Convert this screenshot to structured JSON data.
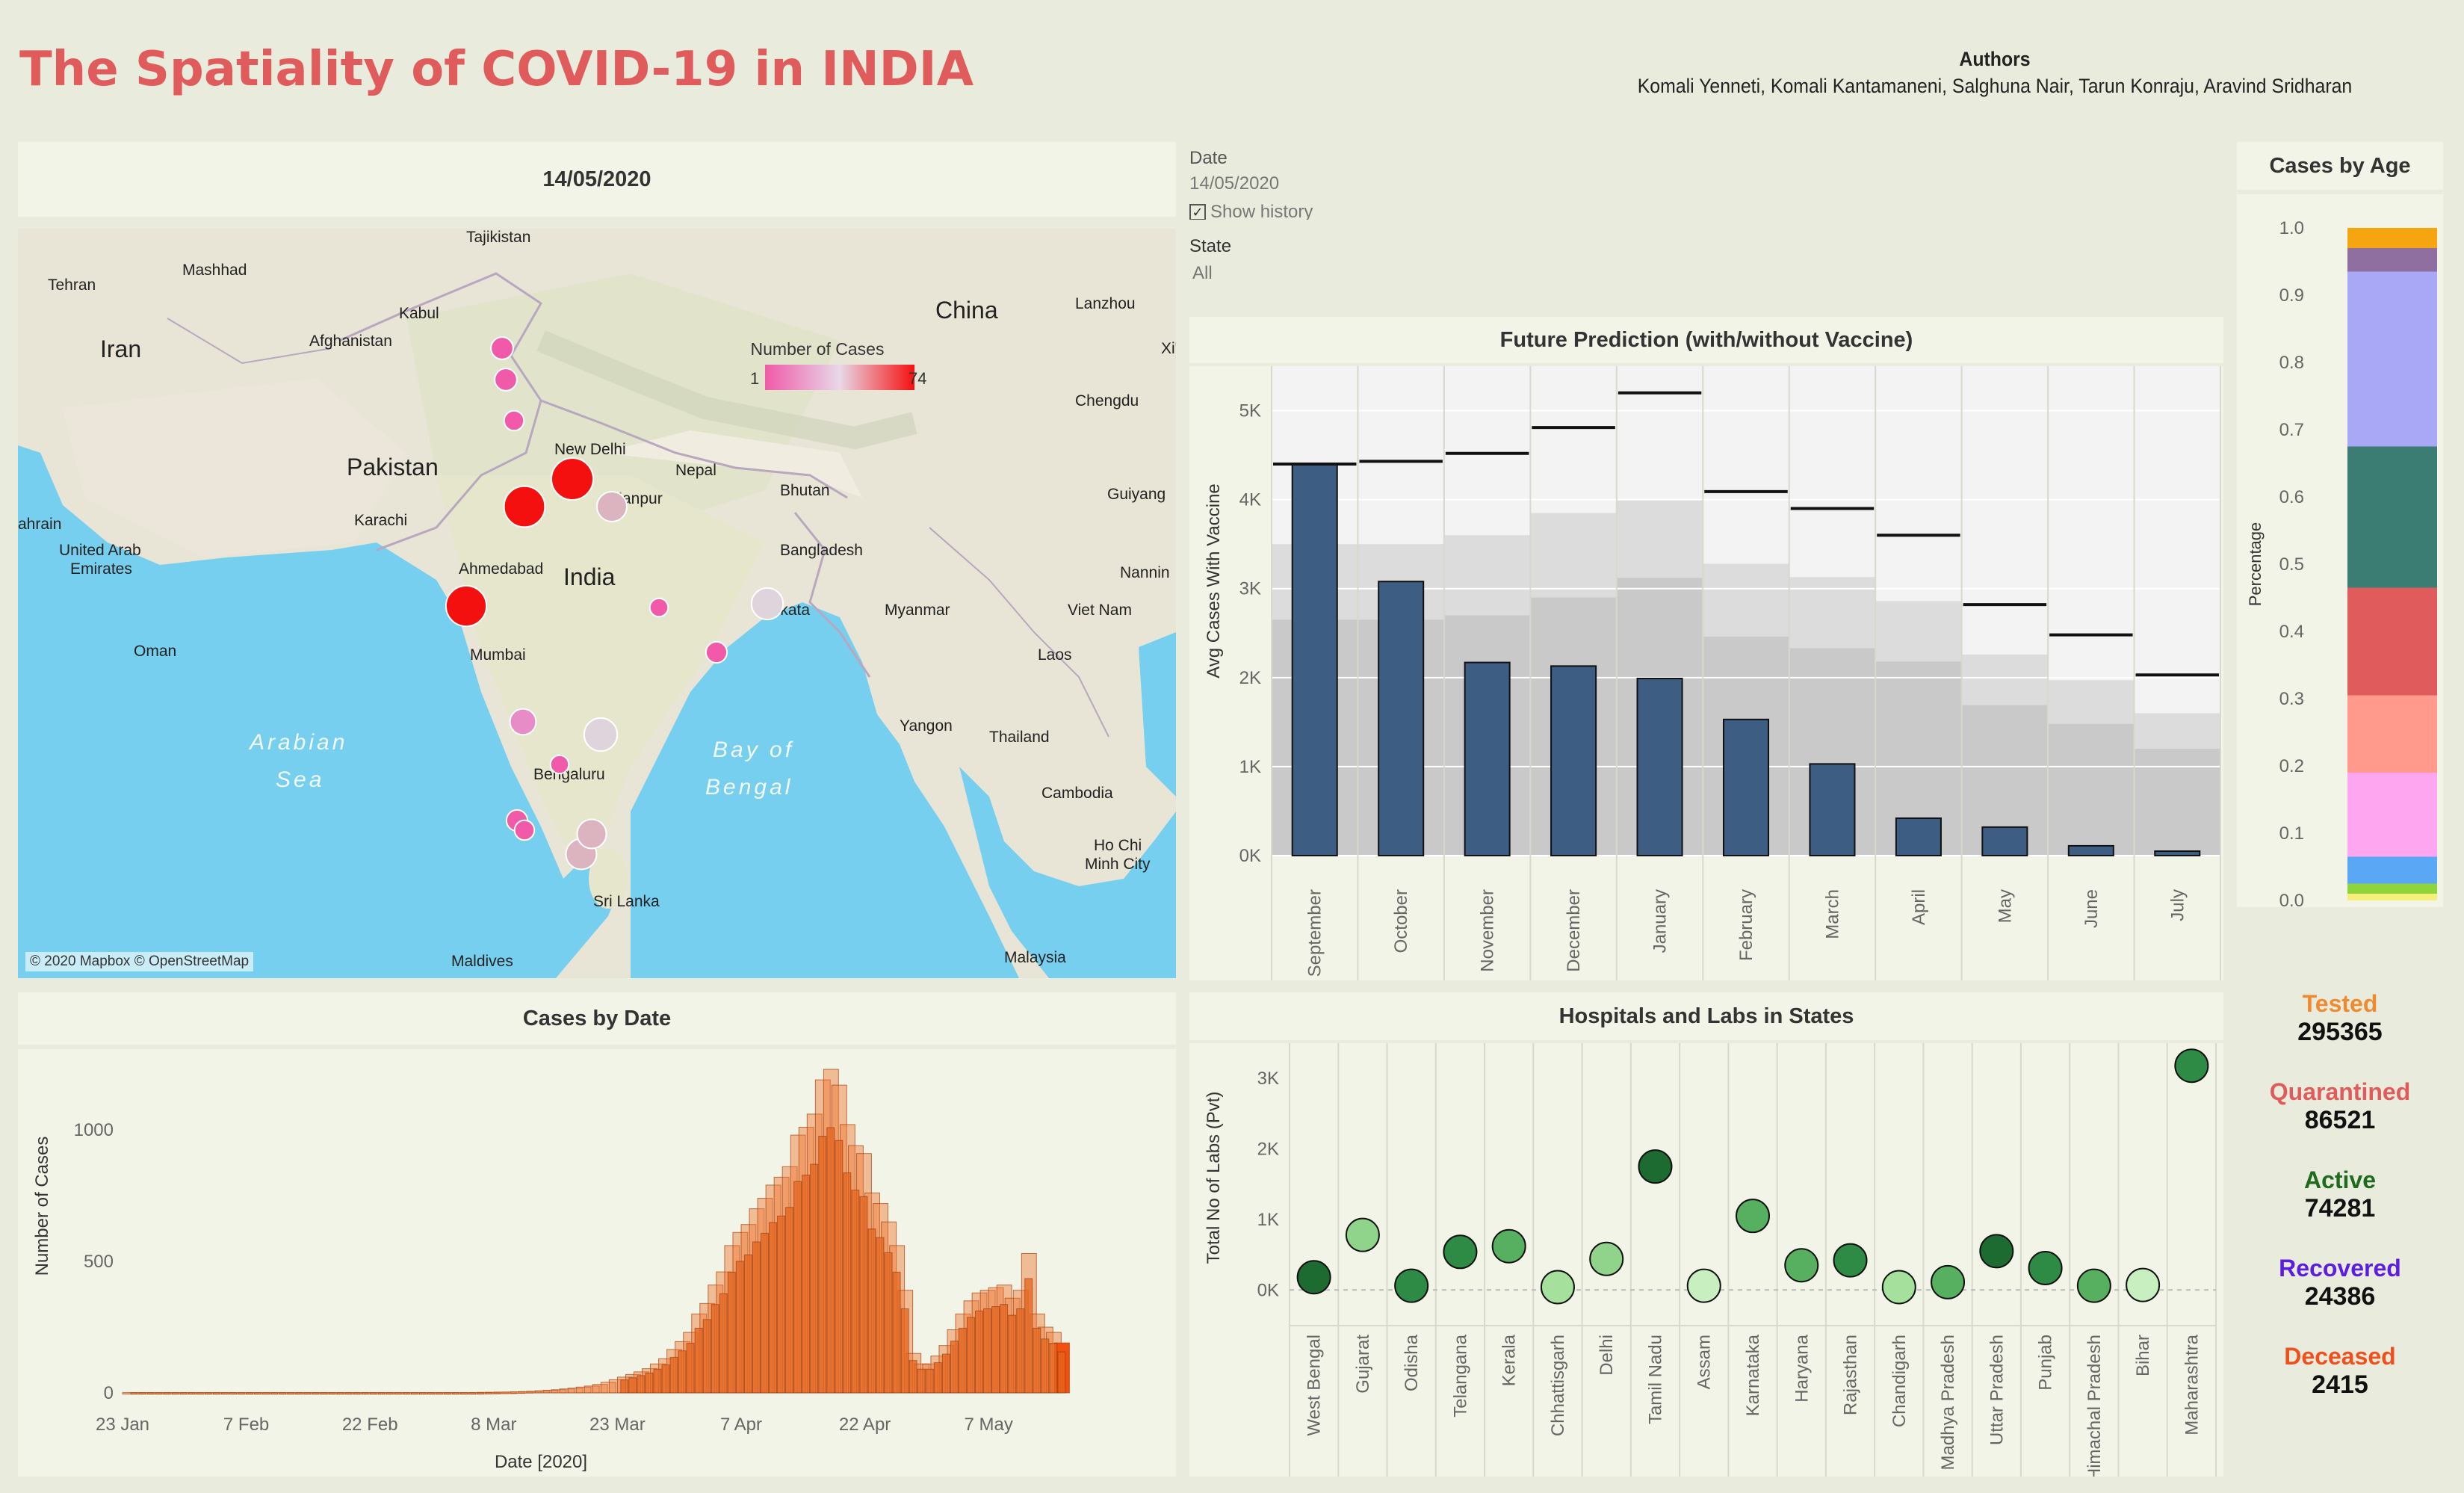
{
  "page": {
    "title": "The Spatiality of COVID-19 in INDIA",
    "authors_heading": "Authors",
    "authors": "Komali Yenneti, Komali Kantamaneni, Salghuna Nair, Tarun Konraju,  Aravind Sridharan"
  },
  "filters": {
    "date_label": "Date",
    "date_value": "14/05/2020",
    "show_history": "Show history",
    "state_label": "State",
    "state_value": "All"
  },
  "map": {
    "header": "14/05/2020",
    "attribution": "© 2020 Mapbox © OpenStreetMap",
    "legend_title": "Number of Cases",
    "legend_min": "1",
    "legend_max": "74",
    "places": [
      {
        "name": "Tajikistan",
        "x": 600,
        "y": 18
      },
      {
        "name": "Mashhad",
        "x": 220,
        "y": 62
      },
      {
        "name": "Tehran",
        "x": 40,
        "y": 82
      },
      {
        "name": "Afghanistan",
        "x": 390,
        "y": 157
      },
      {
        "name": "Kabul",
        "x": 510,
        "y": 120
      },
      {
        "name": "Iran",
        "x": 110,
        "y": 172
      },
      {
        "name": "China",
        "x": 1228,
        "y": 120
      },
      {
        "name": "Lanzhou",
        "x": 1415,
        "y": 107
      },
      {
        "name": "Xi'a",
        "x": 1530,
        "y": 167
      },
      {
        "name": "Chengdu",
        "x": 1415,
        "y": 237
      },
      {
        "name": "Pakistan",
        "x": 440,
        "y": 330
      },
      {
        "name": "New Delhi",
        "x": 718,
        "y": 302
      },
      {
        "name": "Nepal",
        "x": 880,
        "y": 330
      },
      {
        "name": "Bhutan",
        "x": 1020,
        "y": 357
      },
      {
        "name": "Guiyang",
        "x": 1458,
        "y": 362
      },
      {
        "name": "Kanpur",
        "x": 795,
        "y": 368
      },
      {
        "name": "Karachi",
        "x": 450,
        "y": 397
      },
      {
        "name": "Bangladesh",
        "x": 1020,
        "y": 437
      },
      {
        "name": "ahrain",
        "x": 0,
        "y": 402
      },
      {
        "name": "United Arab",
        "x": 55,
        "y": 437
      },
      {
        "name": "Emirates",
        "x": 70,
        "y": 462
      },
      {
        "name": "Ahmedabad",
        "x": 590,
        "y": 462
      },
      {
        "name": "India",
        "x": 730,
        "y": 477
      },
      {
        "name": "Kolkata",
        "x": 990,
        "y": 517
      },
      {
        "name": "Myanmar",
        "x": 1160,
        "y": 517
      },
      {
        "name": "Viet Nam",
        "x": 1405,
        "y": 517
      },
      {
        "name": "Nannin",
        "x": 1475,
        "y": 467
      },
      {
        "name": "Oman",
        "x": 155,
        "y": 572
      },
      {
        "name": "Mumbai",
        "x": 605,
        "y": 577
      },
      {
        "name": "Laos",
        "x": 1365,
        "y": 577
      },
      {
        "name": "Arabian",
        "x": 310,
        "y": 697
      },
      {
        "name": "Sea",
        "x": 345,
        "y": 747
      },
      {
        "name": "Yangon",
        "x": 1180,
        "y": 672
      },
      {
        "name": "Thailand",
        "x": 1300,
        "y": 687
      },
      {
        "name": "Bay of",
        "x": 930,
        "y": 707
      },
      {
        "name": "Bengal",
        "x": 920,
        "y": 757
      },
      {
        "name": "Bengaluru",
        "x": 690,
        "y": 737
      },
      {
        "name": "Cambodia",
        "x": 1370,
        "y": 762
      },
      {
        "name": "Ho Chi",
        "x": 1440,
        "y": 832
      },
      {
        "name": "Minh City",
        "x": 1428,
        "y": 857
      },
      {
        "name": "Sri Lanka",
        "x": 770,
        "y": 907
      },
      {
        "name": "Maldives",
        "x": 580,
        "y": 987
      },
      {
        "name": "Malaysia",
        "x": 1320,
        "y": 982
      }
    ],
    "bubbles": [
      {
        "x": 742,
        "y": 335,
        "cases": 74
      },
      {
        "x": 678,
        "y": 372,
        "cases": 70
      },
      {
        "x": 600,
        "y": 505,
        "cases": 68
      },
      {
        "x": 795,
        "y": 372,
        "cases": 30
      },
      {
        "x": 1003,
        "y": 502,
        "cases": 35
      },
      {
        "x": 780,
        "y": 677,
        "cases": 40
      },
      {
        "x": 754,
        "y": 837,
        "cases": 32
      },
      {
        "x": 768,
        "y": 810,
        "cases": 28
      },
      {
        "x": 676,
        "y": 660,
        "cases": 20
      },
      {
        "x": 648,
        "y": 160,
        "cases": 12
      },
      {
        "x": 653,
        "y": 202,
        "cases": 12
      },
      {
        "x": 664,
        "y": 257,
        "cases": 8
      },
      {
        "x": 935,
        "y": 567,
        "cases": 10
      },
      {
        "x": 858,
        "y": 507,
        "cases": 6
      },
      {
        "x": 725,
        "y": 717,
        "cases": 6
      },
      {
        "x": 668,
        "y": 792,
        "cases": 10
      },
      {
        "x": 678,
        "y": 805,
        "cases": 8
      }
    ]
  },
  "prediction": {
    "header": "Future Prediction (with/without Vaccine)",
    "chart_data": {
      "type": "bar",
      "title": "Future Prediction (with/without Vaccine)",
      "ylabel": "Avg Cases With Vaccine",
      "xlabel": "",
      "ylim": [
        0,
        5500
      ],
      "yticks": [
        "0K",
        "1K",
        "2K",
        "3K",
        "4K",
        "5K"
      ],
      "categories": [
        "September",
        "October",
        "November",
        "December",
        "January",
        "February",
        "March",
        "April",
        "May",
        "June",
        "July"
      ],
      "series": [
        {
          "name": "Avg Cases With Vaccine",
          "values": [
            4400,
            3080,
            2170,
            2130,
            1990,
            1530,
            1030,
            420,
            320,
            110,
            50
          ]
        },
        {
          "name": "Without Vaccine (reference)",
          "values": [
            4400,
            4430,
            4520,
            4810,
            5200,
            4090,
            3900,
            3600,
            2820,
            2480,
            2030
          ]
        }
      ]
    }
  },
  "age": {
    "header": "Cases by Age",
    "chart_data": {
      "type": "bar",
      "title": "Cases by Age",
      "ylabel": "Percentage",
      "ylim": [
        0,
        1.0
      ],
      "yticks": [
        "0.0",
        "0.1",
        "0.2",
        "0.3",
        "0.4",
        "0.5",
        "0.6",
        "0.7",
        "0.8",
        "0.9",
        "1.0"
      ],
      "segments": [
        {
          "value": 0.01,
          "color": "#f6f07a"
        },
        {
          "value": 0.015,
          "color": "#8fd43b"
        },
        {
          "value": 0.04,
          "color": "#5aa8f5"
        },
        {
          "value": 0.125,
          "color": "#ffa6f0"
        },
        {
          "value": 0.115,
          "color": "#ff9a8c"
        },
        {
          "value": 0.16,
          "color": "#e05b5b"
        },
        {
          "value": 0.21,
          "color": "#3b7d72"
        },
        {
          "value": 0.26,
          "color": "#a8a8f7"
        },
        {
          "value": 0.035,
          "color": "#8f6f9f"
        },
        {
          "value": 0.03,
          "color": "#f5a50f"
        }
      ]
    }
  },
  "cases_by_date": {
    "header": "Cases by Date",
    "chart_data": {
      "type": "bar",
      "title": "Cases by Date",
      "ylabel": "Number of Cases",
      "xlabel": "Date [2020]",
      "ylim": [
        0,
        1250
      ],
      "yticks": [
        "0",
        "500",
        "1000"
      ],
      "xticks": [
        "23 Jan",
        "7 Feb",
        "22 Feb",
        "8 Mar",
        "23 Mar",
        "7 Apr",
        "22 Apr",
        "7 May"
      ],
      "x_start_day": 23,
      "x_end_day": 136,
      "values": [
        1,
        1,
        1,
        1,
        1,
        1,
        1,
        1,
        1,
        1,
        1,
        1,
        1,
        1,
        1,
        1,
        1,
        1,
        1,
        1,
        1,
        1,
        1,
        1,
        1,
        1,
        1,
        1,
        1,
        1,
        1,
        1,
        1,
        1,
        1,
        1,
        1,
        1,
        1,
        1,
        1,
        1,
        1,
        2,
        2,
        3,
        3,
        4,
        5,
        6,
        8,
        10,
        12,
        15,
        18,
        22,
        26,
        32,
        40,
        50,
        60,
        70,
        80,
        92,
        110,
        130,
        165,
        195,
        230,
        300,
        340,
        410,
        460,
        560,
        610,
        640,
        700,
        740,
        790,
        820,
        860,
        980,
        1010,
        1060,
        1190,
        1230,
        1170,
        1020,
        940,
        910,
        760,
        720,
        650,
        560,
        390,
        150,
        110,
        110,
        140,
        180,
        240,
        300,
        350,
        380,
        390,
        400,
        410,
        360,
        390,
        530,
        300,
        250,
        230,
        190
      ]
    }
  },
  "labs": {
    "header": "Hospitals and Labs in States",
    "chart_data": {
      "type": "scatter",
      "title": "Hospitals and Labs in States",
      "ylabel": "Total No of Labs (Pvt)",
      "ylim": [
        -400,
        3500
      ],
      "yticks": [
        "0K",
        "1K",
        "2K",
        "3K"
      ],
      "categories": [
        "West Bengal",
        "Gujarat",
        "Odisha",
        "Telangana",
        "Kerala",
        "Chhattisgarh",
        "Delhi",
        "Tamil Nadu",
        "Assam",
        "Karnataka",
        "Haryana",
        "Rajasthan",
        "Chandigarh",
        "Madhya Pradesh",
        "Uttar Pradesh",
        "Punjab",
        "Himachal Pradesh",
        "Bihar",
        "Maharashtra"
      ],
      "values": [
        180,
        780,
        60,
        540,
        620,
        40,
        440,
        1750,
        60,
        1050,
        350,
        420,
        40,
        110,
        550,
        310,
        60,
        70,
        3180
      ],
      "colors": [
        "#1e6b32",
        "#8fd48a",
        "#2e8b45",
        "#2e8b45",
        "#56b060",
        "#a5e09c",
        "#8fd48a",
        "#1e6b32",
        "#c8efc0",
        "#56b060",
        "#56b060",
        "#2e8b45",
        "#a5e09c",
        "#56b060",
        "#1e6b32",
        "#2e8b45",
        "#56b060",
        "#c8efc0",
        "#2e8b45"
      ]
    }
  },
  "kpis": [
    {
      "label": "Tested",
      "value": "295365",
      "color": "#f08a30"
    },
    {
      "label": "Quarantined",
      "value": "86521",
      "color": "#e05b5b"
    },
    {
      "label": "Active",
      "value": "74281",
      "color": "#1e6b1e"
    },
    {
      "label": "Recovered",
      "value": "24386",
      "color": "#5b1ee0"
    },
    {
      "label": "Deceased",
      "value": "2415",
      "color": "#f0501e"
    }
  ]
}
